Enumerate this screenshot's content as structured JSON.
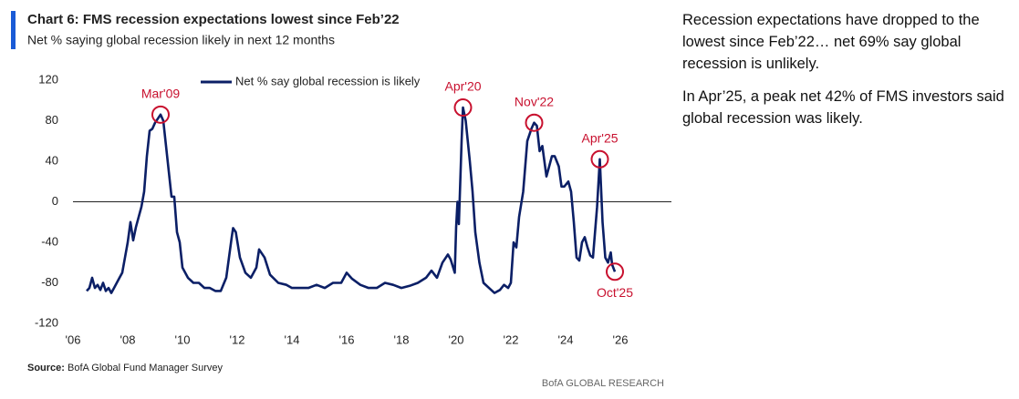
{
  "chart_data": {
    "type": "line",
    "title": "Chart 6: FMS recession expectations lowest since Feb’22",
    "subtitle": "Net % saying global recession likely in next 12 months",
    "x": [
      2006.5,
      2006.6,
      2006.7,
      2006.8,
      2006.9,
      2007.0,
      2007.1,
      2007.2,
      2007.3,
      2007.4,
      2007.5,
      2007.6,
      2007.7,
      2007.8,
      2007.9,
      2008.0,
      2008.1,
      2008.2,
      2008.3,
      2008.4,
      2008.5,
      2008.6,
      2008.7,
      2008.8,
      2008.9,
      2009.0,
      2009.1,
      2009.2,
      2009.3,
      2009.4,
      2009.5,
      2009.6,
      2009.7,
      2009.8,
      2009.9,
      2010.0,
      2010.2,
      2010.4,
      2010.6,
      2010.8,
      2011.0,
      2011.2,
      2011.4,
      2011.6,
      2011.7,
      2011.8,
      2011.85,
      2011.95,
      2012.1,
      2012.3,
      2012.5,
      2012.7,
      2012.8,
      2013.0,
      2013.2,
      2013.5,
      2013.8,
      2014.0,
      2014.3,
      2014.6,
      2014.9,
      2015.2,
      2015.5,
      2015.8,
      2016.0,
      2016.2,
      2016.5,
      2016.8,
      2017.1,
      2017.4,
      2017.7,
      2018.0,
      2018.3,
      2018.6,
      2018.9,
      2019.1,
      2019.3,
      2019.5,
      2019.7,
      2019.8,
      2019.95,
      2020.0,
      2020.05,
      2020.1,
      2020.2,
      2020.25,
      2020.35,
      2020.5,
      2020.6,
      2020.7,
      2020.85,
      2021.0,
      2021.2,
      2021.4,
      2021.6,
      2021.75,
      2021.9,
      2022.0,
      2022.1,
      2022.2,
      2022.3,
      2022.45,
      2022.6,
      2022.75,
      2022.85,
      2022.95,
      2023.05,
      2023.15,
      2023.3,
      2023.4,
      2023.5,
      2023.6,
      2023.75,
      2023.85,
      2023.95,
      2024.1,
      2024.2,
      2024.3,
      2024.4,
      2024.5,
      2024.6,
      2024.7,
      2024.8,
      2024.9,
      2025.0,
      2025.15,
      2025.25,
      2025.35,
      2025.45,
      2025.55,
      2025.65,
      2025.7,
      2025.8
    ],
    "series": [
      {
        "name": "Net % say global recession is likely",
        "color": "#0b1f66",
        "values": [
          -88,
          -85,
          -75,
          -85,
          -82,
          -87,
          -80,
          -88,
          -85,
          -90,
          -85,
          -80,
          -75,
          -70,
          -55,
          -40,
          -20,
          -38,
          -25,
          -15,
          -5,
          10,
          45,
          70,
          72,
          78,
          82,
          86,
          80,
          55,
          30,
          5,
          5,
          -30,
          -40,
          -65,
          -75,
          -80,
          -80,
          -85,
          -85,
          -88,
          -88,
          -75,
          -55,
          -35,
          -26,
          -30,
          -55,
          -70,
          -75,
          -65,
          -47,
          -55,
          -72,
          -80,
          -82,
          -85,
          -85,
          -85,
          -82,
          -85,
          -80,
          -80,
          -70,
          -76,
          -82,
          -85,
          -85,
          -80,
          -82,
          -85,
          -83,
          -80,
          -75,
          -68,
          -75,
          -60,
          -52,
          -57,
          -70,
          -25,
          0,
          -22,
          60,
          93,
          80,
          40,
          10,
          -30,
          -60,
          -80,
          -85,
          -90,
          -87,
          -82,
          -85,
          -80,
          -40,
          -45,
          -15,
          10,
          60,
          72,
          78,
          75,
          50,
          55,
          25,
          35,
          45,
          45,
          35,
          15,
          15,
          20,
          10,
          -20,
          -55,
          -58,
          -40,
          -35,
          -45,
          -53,
          -55,
          -5,
          42,
          -20,
          -55,
          -60,
          -50,
          -62,
          -69
        ]
      }
    ],
    "xlim": [
      2006,
      2028
    ],
    "xticks": [
      {
        "value": 2006,
        "label": "'06"
      },
      {
        "value": 2008,
        "label": "'08"
      },
      {
        "value": 2010,
        "label": "'10"
      },
      {
        "value": 2012,
        "label": "'12"
      },
      {
        "value": 2014,
        "label": "'14"
      },
      {
        "value": 2016,
        "label": "'16"
      },
      {
        "value": 2018,
        "label": "'18"
      },
      {
        "value": 2020,
        "label": "'20"
      },
      {
        "value": 2022,
        "label": "'22"
      },
      {
        "value": 2024,
        "label": "'24"
      },
      {
        "value": 2026,
        "label": "'26"
      }
    ],
    "ylim": [
      -120,
      120
    ],
    "yticks": [
      -120,
      -80,
      -40,
      0,
      40,
      80,
      120
    ],
    "annotations": [
      {
        "text": "Mar'09",
        "x": 2009.2,
        "y": 86
      },
      {
        "text": "Apr'20",
        "x": 2020.25,
        "y": 93
      },
      {
        "text": "Nov'22",
        "x": 2022.85,
        "y": 78
      },
      {
        "text": "Apr'25",
        "x": 2025.25,
        "y": 42
      },
      {
        "text": "Oct'25",
        "x": 2025.8,
        "y": -69
      }
    ],
    "annotation_color": "#c8102e"
  },
  "source": {
    "label": "Source:",
    "text": "BofA Global Fund Manager Survey"
  },
  "footer": "BofA GLOBAL RESEARCH",
  "commentary": [
    "Recession expectations have dropped to the lowest since Feb’22… net 69% say global recession is unlikely.",
    "In Apr’25, a peak net 42% of FMS investors said global recession was likely."
  ]
}
